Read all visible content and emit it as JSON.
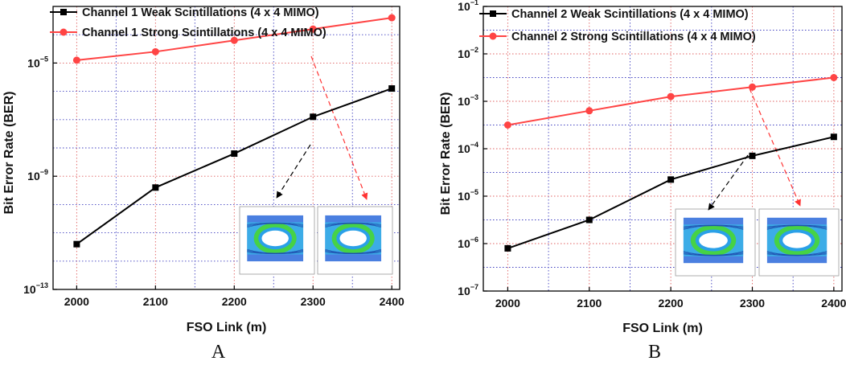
{
  "chart_data": [
    {
      "type": "line",
      "panel_label": "A",
      "xlabel": "FSO Link (m)",
      "ylabel": "Bit Error Rate (BER)",
      "yscale": "log",
      "x": [
        2000,
        2100,
        2200,
        2300,
        2400
      ],
      "xticks": [
        "2000",
        "2100",
        "2200",
        "2300",
        "2400"
      ],
      "xlim": [
        1970,
        2410
      ],
      "ylim_exp": [
        -13,
        -3
      ],
      "yticks": [
        {
          "base": "10",
          "exp": "−5",
          "value_exp": -5
        },
        {
          "base": "10",
          "exp": "−9",
          "value_exp": -9
        },
        {
          "base": "10",
          "exp": "−13",
          "value_exp": -13
        }
      ],
      "series": [
        {
          "name": "Channel 1  Weak Scintillations  (4 x 4 MIMO)",
          "color": "#000000",
          "marker": "square",
          "log10_values": [
            -11.4,
            -9.4,
            -8.2,
            -6.9,
            -5.9
          ]
        },
        {
          "name": "Channel 1 Strong Scintillations (4 x 4 MIMO)",
          "color": "#ff4444",
          "marker": "circle",
          "log10_values": [
            -4.9,
            -4.6,
            -4.2,
            -3.8,
            -3.4
          ]
        }
      ],
      "legend_position": "top-left"
    },
    {
      "type": "line",
      "panel_label": "B",
      "xlabel": "FSO Link (m)",
      "ylabel": "Bit Error Rate (BER)",
      "yscale": "log",
      "x": [
        2000,
        2100,
        2200,
        2300,
        2400
      ],
      "xticks": [
        "2000",
        "2100",
        "2200",
        "2300",
        "2400"
      ],
      "xlim": [
        1970,
        2410
      ],
      "ylim_exp": [
        -7,
        -1
      ],
      "yticks": [
        {
          "base": "10",
          "exp": "−1",
          "value_exp": -1
        },
        {
          "base": "10",
          "exp": "−2",
          "value_exp": -2
        },
        {
          "base": "10",
          "exp": "−3",
          "value_exp": -3
        },
        {
          "base": "10",
          "exp": "−4",
          "value_exp": -4
        },
        {
          "base": "10",
          "exp": "−5",
          "value_exp": -5
        },
        {
          "base": "10",
          "exp": "−6",
          "value_exp": -6
        },
        {
          "base": "10",
          "exp": "−7",
          "value_exp": -7
        }
      ],
      "series": [
        {
          "name": "Channel 2  Weak Scintillations  (4 x 4 MIMO)",
          "color": "#000000",
          "marker": "square",
          "log10_values": [
            -6.1,
            -5.5,
            -4.65,
            -4.15,
            -3.75
          ]
        },
        {
          "name": "Channel 2 Strong Scintillations (4 x 4 MIMO)",
          "color": "#ff4444",
          "marker": "circle",
          "log10_values": [
            -3.5,
            -3.2,
            -2.9,
            -2.7,
            -2.5
          ]
        }
      ],
      "legend_position": "top-left"
    }
  ]
}
